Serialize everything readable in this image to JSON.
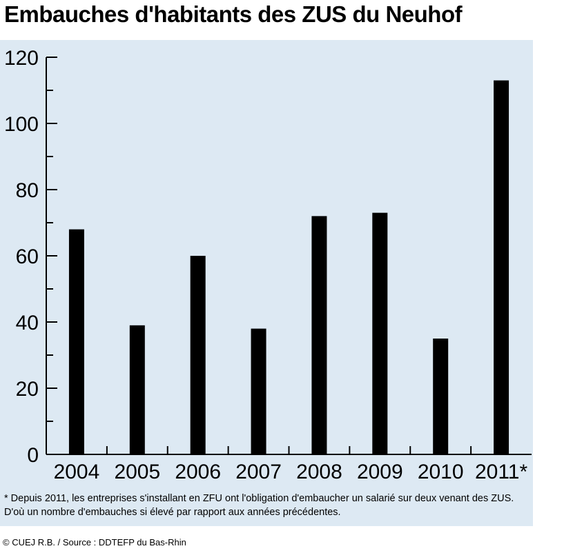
{
  "title": "Embauches d'habitants des ZUS du Neuhof",
  "footnote": "* Depuis 2011, les entreprises s'installant en ZFU ont l'obligation d'embaucher un salarié sur deux venant des ZUS. D'où un nombre d'embauches si élevé par rapport aux années précédentes.",
  "credit": "© CUEJ R.B. / Source : DDTEFP du Bas-Rhin",
  "colors": {
    "panel": "#dde9f3",
    "bar": "#000000"
  },
  "chart_data": {
    "type": "bar",
    "categories": [
      "2004",
      "2005",
      "2006",
      "2007",
      "2008",
      "2009",
      "2010",
      "2011*"
    ],
    "values": [
      68,
      39,
      60,
      38,
      72,
      73,
      35,
      113
    ],
    "title": "Embauches d'habitants des ZUS du Neuhof",
    "xlabel": "",
    "ylabel": "",
    "ylim": [
      0,
      120
    ],
    "yticks": [
      "0",
      "20",
      "40",
      "60",
      "80",
      "100",
      "120"
    ],
    "grid": false,
    "legend": "none"
  }
}
